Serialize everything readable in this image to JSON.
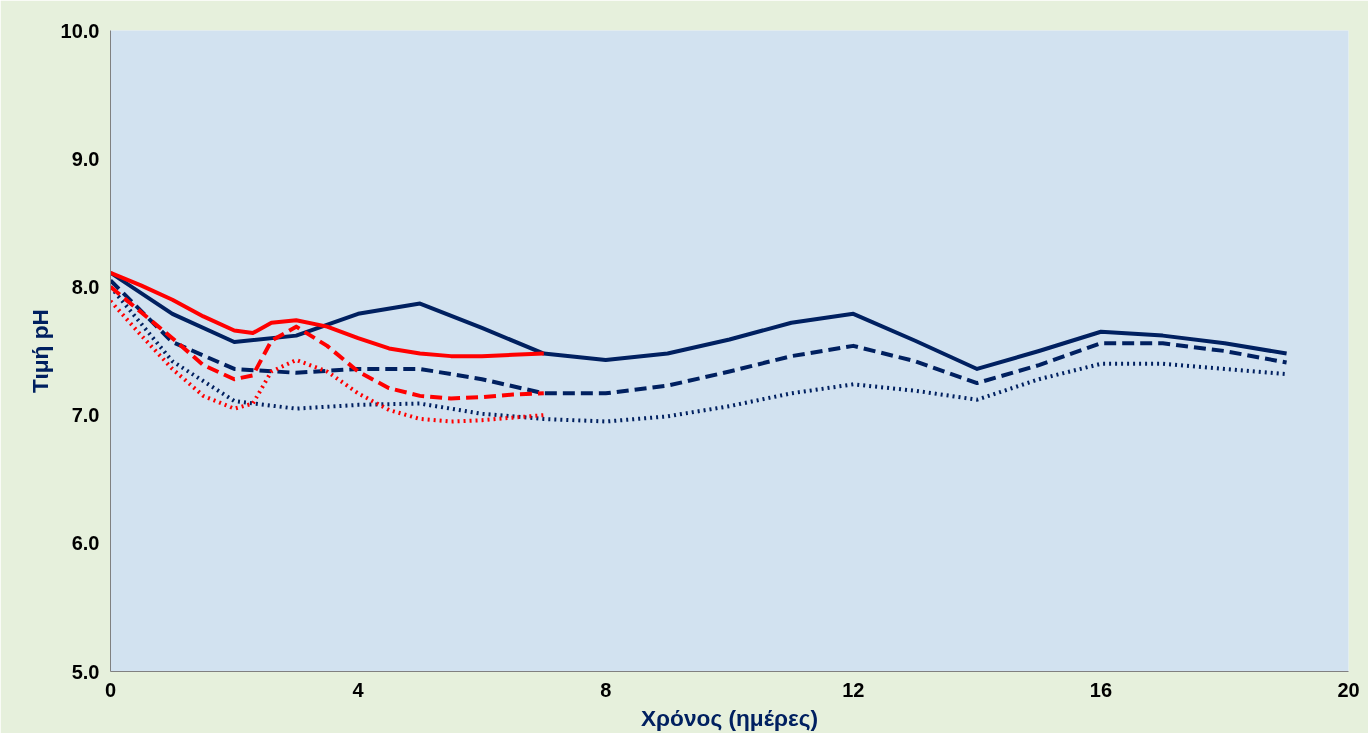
{
  "chart_data": {
    "type": "line",
    "xlabel": "Χρόνος (ημέρες)",
    "ylabel": "Τιμή pH",
    "xlim": [
      0,
      20
    ],
    "xticks": [
      0,
      4,
      8,
      12,
      16,
      20
    ],
    "ylim": [
      5,
      10
    ],
    "yticks": [
      {
        "value": 5,
        "label": "5.0"
      },
      {
        "value": 6,
        "label": "6.0"
      },
      {
        "value": 7,
        "label": "7.0"
      },
      {
        "value": 8,
        "label": "8.0"
      },
      {
        "value": 9,
        "label": "9.0"
      },
      {
        "value": 10,
        "label": "10.0"
      }
    ],
    "grid": false,
    "marker": "none",
    "series": [
      {
        "color": "#002060",
        "line_style": "solid",
        "x": [
          0,
          1,
          2,
          3,
          4,
          5,
          6,
          7,
          8,
          9,
          10,
          11,
          12,
          13,
          14,
          15,
          16,
          17,
          18,
          19
        ],
        "values": [
          8.11,
          7.79,
          7.57,
          7.62,
          7.79,
          7.87,
          7.68,
          7.48,
          7.43,
          7.48,
          7.59,
          7.72,
          7.79,
          7.58,
          7.36,
          7.5,
          7.65,
          7.62,
          7.56,
          7.48
        ]
      },
      {
        "color": "#002060",
        "line_style": "dashed",
        "x": [
          0,
          1,
          2,
          3,
          4,
          5,
          6,
          7,
          8,
          9,
          10,
          11,
          12,
          13,
          14,
          15,
          16,
          17,
          18,
          19
        ],
        "values": [
          8.05,
          7.57,
          7.36,
          7.33,
          7.36,
          7.36,
          7.28,
          7.17,
          7.17,
          7.23,
          7.34,
          7.46,
          7.54,
          7.42,
          7.25,
          7.39,
          7.56,
          7.56,
          7.5,
          7.41
        ]
      },
      {
        "color": "#002060",
        "line_style": "dotted",
        "x": [
          0,
          1,
          2,
          3,
          4,
          5,
          6,
          7,
          8,
          9,
          10,
          11,
          12,
          13,
          14,
          15,
          16,
          17,
          18,
          19
        ],
        "values": [
          8.0,
          7.42,
          7.11,
          7.05,
          7.08,
          7.09,
          7.01,
          6.97,
          6.95,
          6.99,
          7.07,
          7.17,
          7.24,
          7.19,
          7.12,
          7.28,
          7.4,
          7.4,
          7.36,
          7.32
        ]
      },
      {
        "color": "#ff0000",
        "line_style": "solid",
        "x": [
          0,
          0.5,
          1,
          1.5,
          2,
          2.3,
          2.6,
          3,
          3.5,
          4,
          4.5,
          5,
          5.5,
          6,
          6.5,
          7
        ],
        "values": [
          8.11,
          8.01,
          7.9,
          7.77,
          7.66,
          7.64,
          7.72,
          7.74,
          7.69,
          7.6,
          7.52,
          7.48,
          7.46,
          7.46,
          7.47,
          7.48
        ]
      },
      {
        "color": "#ff0000",
        "line_style": "dashed",
        "x": [
          0,
          0.5,
          1,
          1.5,
          2,
          2.3,
          2.6,
          3,
          3.5,
          4,
          4.5,
          5,
          5.5,
          6,
          6.5,
          7
        ],
        "values": [
          8.0,
          7.8,
          7.6,
          7.39,
          7.28,
          7.31,
          7.58,
          7.69,
          7.54,
          7.34,
          7.21,
          7.15,
          7.13,
          7.14,
          7.16,
          7.17
        ]
      },
      {
        "color": "#ff0000",
        "line_style": "dotted",
        "x": [
          0,
          0.5,
          1,
          1.5,
          2,
          2.3,
          2.6,
          3,
          3.5,
          4,
          4.5,
          5,
          5.5,
          6,
          6.5,
          7
        ],
        "values": [
          7.89,
          7.62,
          7.36,
          7.15,
          7.05,
          7.09,
          7.34,
          7.43,
          7.34,
          7.17,
          7.04,
          6.97,
          6.95,
          6.96,
          6.98,
          7.0
        ]
      }
    ]
  }
}
